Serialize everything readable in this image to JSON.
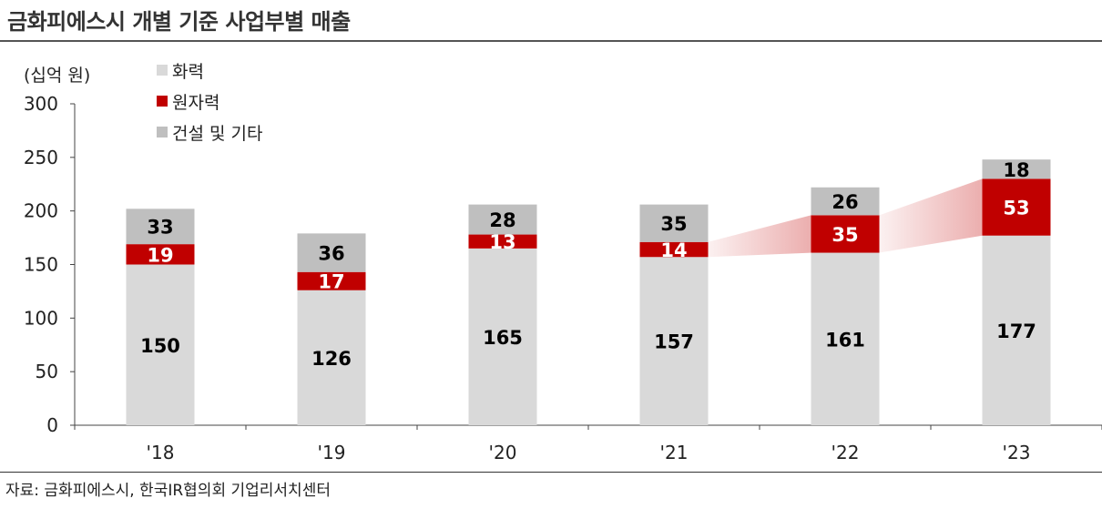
{
  "header": {
    "title": "금화피에스시 개별 기준 사업부별 매출"
  },
  "unit": "(십억 원)",
  "legend": [
    {
      "label": "화력",
      "color": "#d9d9d9"
    },
    {
      "label": "원자력",
      "color": "#c00000"
    },
    {
      "label": "건설 및 기타",
      "color": "#bfbfbf"
    }
  ],
  "source": "자료: 금화피에스시, 한국IR협의회 기업리서치센터",
  "chart_data": {
    "type": "bar",
    "stacked": true,
    "categories": [
      "'18",
      "'19",
      "'20",
      "'21",
      "'22",
      "'23"
    ],
    "series": [
      {
        "name": "화력",
        "values": [
          150,
          126,
          165,
          157,
          161,
          177
        ],
        "color": "#d9d9d9",
        "label_color": "#000000"
      },
      {
        "name": "원자력",
        "values": [
          19,
          17,
          13,
          14,
          35,
          53
        ],
        "color": "#c00000",
        "label_color": "#ffffff"
      },
      {
        "name": "건설 및 기타",
        "values": [
          33,
          36,
          28,
          35,
          26,
          18
        ],
        "color": "#bfbfbf",
        "label_color": "#000000"
      }
    ],
    "ylim": [
      0,
      300
    ],
    "yticks": [
      0,
      50,
      100,
      150,
      200,
      250,
      300
    ],
    "ylabel": "(십억 원)",
    "grid": false,
    "legend_position": "top-left",
    "highlight": {
      "series": "원자력",
      "from_category": "'21",
      "color": "#e8a0a0"
    }
  }
}
